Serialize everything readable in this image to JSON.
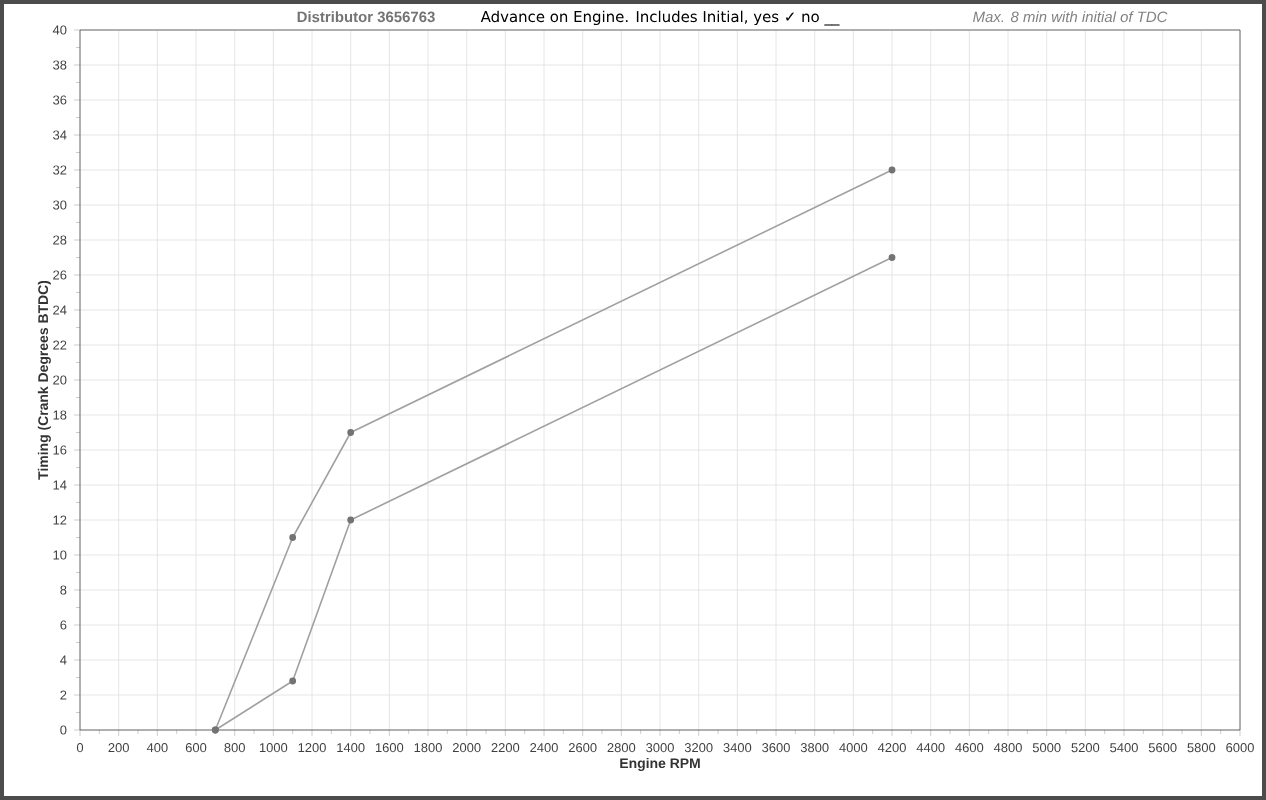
{
  "chart_data": {
    "type": "line",
    "title": "Advance on Engine.   Includes Initial, yes ✓ no __",
    "annotations": [
      "Distributor 3656763",
      "Max. 8 min with initial of TDC"
    ],
    "xlabel": "Engine RPM",
    "ylabel": "Timing (Crank Degrees BTDC)",
    "xlim": [
      0,
      6000
    ],
    "ylim": [
      0,
      40
    ],
    "xticks": [
      0,
      200,
      400,
      600,
      800,
      1000,
      1200,
      1400,
      1600,
      1800,
      2000,
      2200,
      2400,
      2600,
      2800,
      3000,
      3200,
      3400,
      3600,
      3800,
      4000,
      4200,
      4400,
      4600,
      4800,
      5000,
      5200,
      5400,
      5600,
      5800,
      6000
    ],
    "yticks": [
      0,
      2,
      4,
      6,
      8,
      10,
      12,
      14,
      16,
      18,
      20,
      22,
      24,
      26,
      28,
      30,
      32,
      34,
      36,
      38,
      40
    ],
    "grid": true,
    "marker": "circle",
    "line_style": "solid",
    "series": [
      {
        "color": "#a0a0a0",
        "x": [
          700,
          1100,
          1400,
          4200
        ],
        "values": [
          0,
          11,
          17,
          32
        ]
      },
      {
        "color": "#a0a0a0",
        "x": [
          700,
          1100,
          1400,
          4200
        ],
        "values": [
          0,
          2.8,
          12,
          27
        ]
      }
    ]
  }
}
